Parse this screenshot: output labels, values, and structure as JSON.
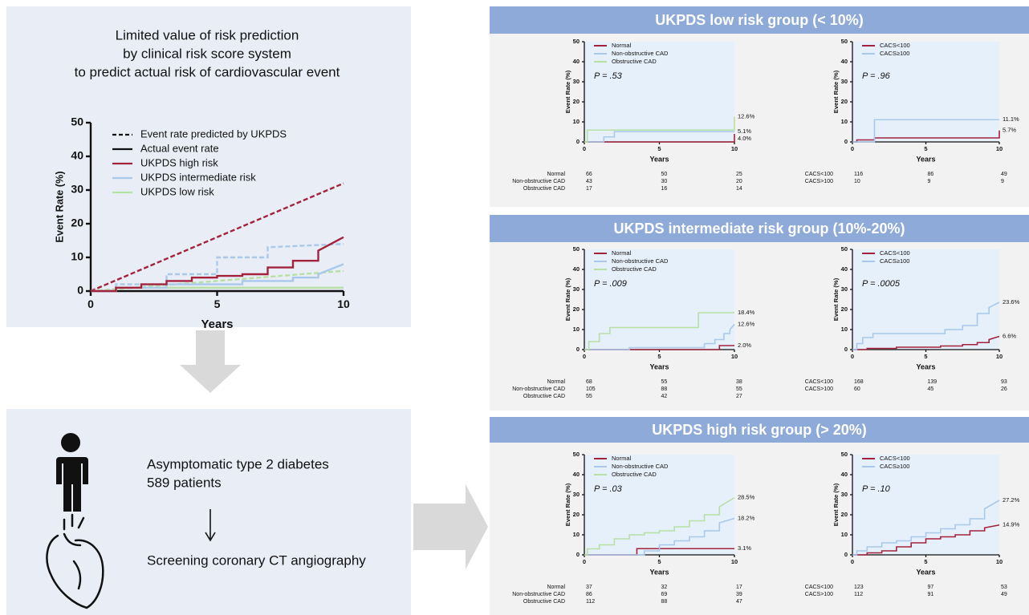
{
  "summary": {
    "title_lines": [
      "Limited value of risk prediction",
      "by clinical risk score system",
      "to predict actual risk of cardiovascular event"
    ]
  },
  "study": {
    "lines": [
      "Asymptomatic type 2 diabetes",
      "589 patients",
      "Screening coronary CT angiography"
    ]
  },
  "groups": [
    {
      "title": "UKPDS low risk group (< 10%)"
    },
    {
      "title": "UKPDS intermediate risk group (10%-20%)"
    },
    {
      "title": "UKPDS high risk group (> 20%)"
    }
  ],
  "chart_data": [
    {
      "type": "line",
      "xlabel": "Years",
      "ylabel": "Event Rate (%)",
      "xlim": [
        0,
        10
      ],
      "ylim": [
        0,
        50
      ],
      "xticks": [
        0,
        5,
        10
      ],
      "yticks": [
        0,
        10,
        20,
        30,
        40,
        50
      ],
      "legend": [
        {
          "label": "Event rate predicted by UKPDS",
          "color": "#111111",
          "dash": true
        },
        {
          "label": "Actual event rate",
          "color": "#111111",
          "dash": false
        },
        {
          "label": "UKPDS high risk",
          "color": "#a3223c",
          "dash": false
        },
        {
          "label": "UKPDS intermediate risk",
          "color": "#a9c8ea",
          "dash": false
        },
        {
          "label": "UKPDS low risk",
          "color": "#b7e0a5",
          "dash": false
        }
      ],
      "series": [
        {
          "color": "#a3223c",
          "dash": true,
          "x": [
            0,
            10
          ],
          "values": [
            0,
            32
          ]
        },
        {
          "color": "#a9c8ea",
          "dash": true,
          "x": [
            0,
            1,
            1,
            3,
            3,
            5,
            5,
            7,
            7,
            10
          ],
          "values": [
            0,
            0,
            2,
            2,
            5,
            5,
            10,
            10,
            13,
            14
          ]
        },
        {
          "color": "#b7e0a5",
          "dash": true,
          "x": [
            0,
            10
          ],
          "values": [
            0,
            6
          ]
        },
        {
          "color": "#b7e0a5",
          "dash": false,
          "x": [
            0,
            1,
            1,
            10
          ],
          "values": [
            0,
            0,
            1,
            1
          ]
        },
        {
          "color": "#a9c8ea",
          "dash": false,
          "x": [
            0,
            1,
            1,
            3,
            3,
            6,
            6,
            8,
            8,
            9,
            9,
            10
          ],
          "values": [
            0,
            0,
            1,
            1,
            2,
            2,
            3,
            3,
            4,
            4,
            5,
            8
          ]
        },
        {
          "color": "#a3223c",
          "dash": false,
          "x": [
            0,
            1,
            1,
            2,
            2,
            3,
            3,
            4,
            4,
            5,
            5,
            6,
            6,
            7,
            7,
            8,
            8,
            9,
            9,
            10
          ],
          "values": [
            0,
            0,
            1,
            1,
            2,
            2,
            3,
            3,
            4,
            4,
            4.5,
            4.5,
            5,
            5,
            7,
            7,
            9,
            9,
            12,
            16
          ]
        }
      ]
    },
    {
      "type": "line",
      "xlabel": "Years",
      "ylabel": "Event Rate (%)",
      "xlim": [
        0,
        10
      ],
      "ylim": [
        0,
        50
      ],
      "xticks": [
        0,
        5,
        10
      ],
      "yticks": [
        0,
        10,
        20,
        30,
        40,
        50
      ],
      "annotation": "P = .53",
      "series": [
        {
          "name": "Normal",
          "color": "#a3223c",
          "x": [
            0,
            10,
            10
          ],
          "values": [
            0,
            0,
            4.0
          ],
          "end_label": "4.0%"
        },
        {
          "name": "Non-obstructive CAD",
          "color": "#a9c8ea",
          "x": [
            0,
            1.3,
            1.3,
            2,
            2,
            10
          ],
          "values": [
            0,
            0,
            2.5,
            2.5,
            5.1,
            5.1
          ],
          "end_label": "5.1%"
        },
        {
          "name": "Obstructive CAD",
          "color": "#b7e0a5",
          "x": [
            0,
            0.2,
            0.2,
            10,
            10
          ],
          "values": [
            0,
            0,
            5.9,
            5.9,
            12.6
          ],
          "end_label": "12.6%"
        }
      ],
      "at_risk": [
        {
          "label": "Normal",
          "counts": [
            66,
            50,
            25
          ]
        },
        {
          "label": "Non-obstructive CAD",
          "counts": [
            43,
            30,
            20
          ]
        },
        {
          "label": "Obstructive CAD",
          "counts": [
            17,
            16,
            14
          ]
        }
      ]
    },
    {
      "type": "line",
      "xlabel": "Years",
      "ylabel": "Event Rate (%)",
      "xlim": [
        0,
        10
      ],
      "ylim": [
        0,
        50
      ],
      "xticks": [
        0,
        5,
        10
      ],
      "yticks": [
        0,
        10,
        20,
        30,
        40,
        50
      ],
      "annotation": "P = .96",
      "series": [
        {
          "name": "CACS<100",
          "color": "#a3223c",
          "x": [
            0,
            0.3,
            0.3,
            1.5,
            1.5,
            10,
            10
          ],
          "values": [
            0,
            0,
            1,
            1,
            2,
            2,
            5.7
          ],
          "end_label": "5.7%"
        },
        {
          "name": "CACS≥100",
          "color": "#a9c8ea",
          "x": [
            0,
            1.5,
            1.5,
            10
          ],
          "values": [
            0,
            0,
            11.1,
            11.1
          ],
          "end_label": "11.1%"
        }
      ],
      "at_risk": [
        {
          "label": "CACS<100",
          "counts": [
            116,
            86,
            49
          ]
        },
        {
          "label": "CACS>100",
          "counts": [
            10,
            9,
            9
          ]
        }
      ]
    },
    {
      "type": "line",
      "xlabel": "Years",
      "ylabel": "Event Rate (%)",
      "xlim": [
        0,
        10
      ],
      "ylim": [
        0,
        50
      ],
      "xticks": [
        0,
        5,
        10
      ],
      "yticks": [
        0,
        10,
        20,
        30,
        40,
        50
      ],
      "annotation": "P = .009",
      "series": [
        {
          "name": "Normal",
          "color": "#a3223c",
          "x": [
            0,
            9,
            9,
            10
          ],
          "values": [
            0,
            0,
            2.0,
            2.0
          ],
          "end_label": "2.0%"
        },
        {
          "name": "Non-obstructive CAD",
          "color": "#a9c8ea",
          "x": [
            0,
            3,
            3,
            8,
            8,
            8.7,
            8.7,
            9.3,
            9.3,
            9.7,
            9.7,
            10
          ],
          "values": [
            0,
            0,
            1,
            1,
            3,
            3,
            5,
            5,
            8,
            8,
            10,
            12.6
          ],
          "end_label": "12.6%"
        },
        {
          "name": "Obstructive CAD",
          "color": "#b7e0a5",
          "x": [
            0,
            0.3,
            0.3,
            1,
            1,
            1.7,
            1.7,
            7.6,
            7.6,
            10
          ],
          "values": [
            0,
            0,
            4,
            4,
            8,
            8,
            11,
            11,
            18.4,
            18.4
          ],
          "end_label": "18.4%"
        }
      ],
      "at_risk": [
        {
          "label": "Normal",
          "counts": [
            68,
            55,
            38
          ]
        },
        {
          "label": "Non-obstructive CAD",
          "counts": [
            105,
            88,
            55
          ]
        },
        {
          "label": "Obstructive CAD",
          "counts": [
            55,
            42,
            27
          ]
        }
      ]
    },
    {
      "type": "line",
      "xlabel": "Years",
      "ylabel": "Event Rate (%)",
      "xlim": [
        0,
        10
      ],
      "ylim": [
        0,
        50
      ],
      "xticks": [
        0,
        5,
        10
      ],
      "yticks": [
        0,
        10,
        20,
        30,
        40,
        50
      ],
      "annotation": "P = .0005",
      "series": [
        {
          "name": "CACS<100",
          "color": "#a3223c",
          "x": [
            0,
            1,
            1,
            3,
            3,
            6,
            6,
            7.5,
            7.5,
            8.5,
            8.5,
            9.3,
            9.3,
            10
          ],
          "values": [
            0,
            0,
            0.6,
            0.6,
            1.2,
            1.2,
            1.8,
            1.8,
            2.5,
            2.5,
            3.5,
            3.5,
            5,
            6.6
          ],
          "end_label": "6.6%"
        },
        {
          "name": "CACS≥100",
          "color": "#a9c8ea",
          "x": [
            0,
            0.3,
            0.3,
            0.7,
            0.7,
            1.4,
            1.4,
            6.3,
            6.3,
            7.5,
            7.5,
            8.5,
            8.5,
            9.3,
            9.3,
            10
          ],
          "values": [
            0,
            0,
            3,
            3,
            6,
            6,
            8,
            8,
            10,
            10,
            12,
            12,
            18,
            18,
            21,
            23.6
          ],
          "end_label": "23.6%"
        }
      ],
      "at_risk": [
        {
          "label": "CACS<100",
          "counts": [
            168,
            139,
            93
          ]
        },
        {
          "label": "CACS>100",
          "counts": [
            60,
            45,
            26
          ]
        }
      ]
    },
    {
      "type": "line",
      "xlabel": "Years",
      "ylabel": "Event Rate (%)",
      "xlim": [
        0,
        10
      ],
      "ylim": [
        0,
        50
      ],
      "xticks": [
        0,
        5,
        10
      ],
      "yticks": [
        0,
        10,
        20,
        30,
        40,
        50
      ],
      "annotation": "P = .03",
      "series": [
        {
          "name": "Normal",
          "color": "#a3223c",
          "x": [
            0,
            3.5,
            3.5,
            10
          ],
          "values": [
            0,
            0,
            3.1,
            3.1
          ],
          "end_label": "3.1%"
        },
        {
          "name": "Non-obstructive CAD",
          "color": "#a9c8ea",
          "x": [
            0,
            4,
            4,
            5,
            5,
            6,
            6,
            7,
            7,
            8,
            8,
            9,
            9,
            10
          ],
          "values": [
            0,
            0,
            2,
            2,
            5,
            5,
            7,
            7,
            9,
            9,
            12,
            12,
            16,
            18.2
          ],
          "end_label": "18.2%"
        },
        {
          "name": "Obstructive CAD",
          "color": "#b7e0a5",
          "x": [
            0,
            0.2,
            0.2,
            1,
            1,
            2,
            2,
            3,
            3,
            4,
            4,
            5,
            5,
            6,
            6,
            7,
            7,
            8,
            8,
            9,
            9,
            10
          ],
          "values": [
            0,
            0,
            3,
            3,
            5,
            5,
            8,
            8,
            10,
            10,
            11,
            11,
            12,
            12,
            14,
            14,
            17,
            17,
            20,
            20,
            24,
            28.5
          ],
          "end_label": "28.5%"
        }
      ],
      "at_risk": [
        {
          "label": "Normal",
          "counts": [
            37,
            32,
            17
          ]
        },
        {
          "label": "Non-obstructive CAD",
          "counts": [
            86,
            69,
            39
          ]
        },
        {
          "label": "Obstructive CAD",
          "counts": [
            112,
            88,
            47
          ]
        }
      ]
    },
    {
      "type": "line",
      "xlabel": "Years",
      "ylabel": "Event Rate (%)",
      "xlim": [
        0,
        10
      ],
      "ylim": [
        0,
        50
      ],
      "xticks": [
        0,
        5,
        10
      ],
      "yticks": [
        0,
        10,
        20,
        30,
        40,
        50
      ],
      "annotation": "P = .10",
      "series": [
        {
          "name": "CACS<100",
          "color": "#a3223c",
          "x": [
            0,
            1,
            1,
            2,
            2,
            3,
            3,
            4,
            4,
            5,
            5,
            6,
            6,
            7,
            7,
            8,
            8,
            9,
            9,
            10
          ],
          "values": [
            0,
            0,
            1,
            1,
            2,
            2,
            4,
            4,
            6,
            6,
            8,
            8,
            9,
            9,
            10,
            10,
            12,
            12,
            13.5,
            14.9
          ],
          "end_label": "14.9%"
        },
        {
          "name": "CACS≥100",
          "color": "#a9c8ea",
          "x": [
            0,
            0.3,
            0.3,
            1,
            1,
            2,
            2,
            3,
            3,
            4,
            4,
            5,
            5,
            6,
            6,
            7,
            7,
            8,
            8,
            9,
            9,
            10
          ],
          "values": [
            0,
            0,
            2,
            2,
            4,
            4,
            6,
            6,
            7,
            7,
            9,
            9,
            11,
            11,
            13,
            13,
            15,
            15,
            18,
            18,
            23,
            27.2
          ],
          "end_label": "27.2%"
        }
      ],
      "at_risk": [
        {
          "label": "CACS<100",
          "counts": [
            123,
            97,
            53
          ]
        },
        {
          "label": "CACS>100",
          "counts": [
            112,
            91,
            49
          ]
        }
      ]
    }
  ]
}
